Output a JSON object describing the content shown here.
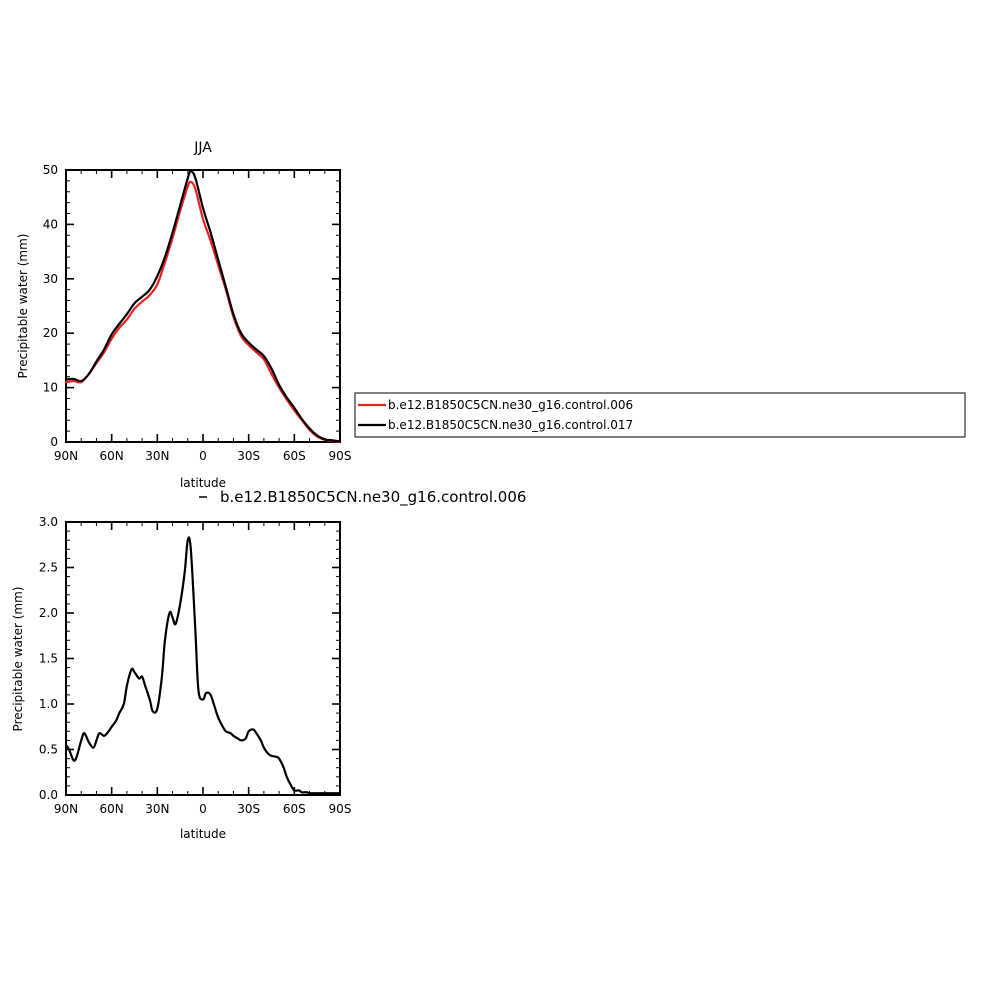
{
  "colors": {
    "series_a": "#e8201f",
    "series_b": "#000000",
    "diff": "#000000"
  },
  "chart_data": [
    {
      "type": "line",
      "title": "JJA",
      "xlabel": "latitude",
      "ylabel": "Precipitable water (mm)",
      "x_ticks": [
        "90N",
        "60N",
        "30N",
        "0",
        "30S",
        "60S",
        "90S"
      ],
      "x_tick_values": [
        90,
        60,
        30,
        0,
        -30,
        -60,
        -90
      ],
      "y_ticks": [
        "0",
        "10",
        "20",
        "30",
        "40",
        "50"
      ],
      "y_tick_values": [
        0,
        10,
        20,
        30,
        40,
        50
      ],
      "xlim": [
        90,
        -90
      ],
      "ylim": [
        0,
        50
      ],
      "legend": "right",
      "x": [
        90,
        85,
        80,
        75,
        70,
        65,
        60,
        55,
        50,
        45,
        40,
        35,
        30,
        25,
        20,
        15,
        10,
        8,
        5,
        0,
        -5,
        -10,
        -15,
        -20,
        -25,
        -30,
        -35,
        -40,
        -45,
        -50,
        -55,
        -60,
        -65,
        -70,
        -75,
        -80,
        -85,
        -90
      ],
      "series": [
        {
          "name": "b.e12.B1850C5CN.ne30_g16.control.006",
          "color": "#e8201f",
          "values": [
            11.0,
            11.2,
            11.0,
            12.5,
            14.5,
            16.5,
            19.0,
            21.0,
            22.5,
            24.5,
            25.8,
            27.0,
            29.0,
            33.0,
            37.5,
            42.5,
            47.0,
            47.8,
            46.5,
            41.0,
            37.0,
            32.5,
            28.0,
            23.0,
            19.5,
            17.8,
            16.5,
            15.2,
            12.5,
            10.0,
            7.8,
            5.8,
            4.0,
            2.2,
            1.0,
            0.4,
            0.2,
            0.0
          ]
        },
        {
          "name": "b.e12.B1850C5CN.ne30_g16.control.017",
          "color": "#000000",
          "values": [
            11.5,
            11.6,
            11.2,
            12.5,
            14.8,
            17.0,
            19.8,
            21.7,
            23.5,
            25.5,
            26.7,
            28.0,
            30.5,
            34.0,
            38.5,
            43.5,
            48.5,
            49.8,
            48.5,
            43.0,
            38.5,
            33.5,
            28.5,
            23.5,
            20.0,
            18.3,
            17.0,
            15.8,
            13.5,
            10.5,
            8.2,
            6.3,
            4.2,
            2.5,
            1.2,
            0.5,
            0.3,
            0.1
          ]
        }
      ]
    },
    {
      "type": "line",
      "title": "b.e12.B1850C5CN.ne30_g16.control.006",
      "xlabel": "latitude",
      "ylabel": "Precipitable water (mm)",
      "x_ticks": [
        "90N",
        "60N",
        "30N",
        "0",
        "30S",
        "60S",
        "90S"
      ],
      "x_tick_values": [
        90,
        60,
        30,
        0,
        -30,
        -60,
        -90
      ],
      "y_ticks": [
        "0.0",
        "0.5",
        "1.0",
        "1.5",
        "2.0",
        "2.5",
        "3.0"
      ],
      "y_tick_values": [
        0,
        0.5,
        1.0,
        1.5,
        2.0,
        2.5,
        3.0
      ],
      "xlim": [
        90,
        -90
      ],
      "ylim": [
        0,
        3.0
      ],
      "x": [
        90,
        88,
        85,
        83,
        80,
        78,
        75,
        72,
        70,
        68,
        65,
        62,
        60,
        57,
        55,
        52,
        50,
        47,
        45,
        42,
        40,
        38,
        35,
        33,
        30,
        27,
        25,
        22,
        20,
        18,
        15,
        12,
        10,
        8,
        5,
        3,
        0,
        -2,
        -5,
        -8,
        -10,
        -13,
        -15,
        -18,
        -20,
        -23,
        -25,
        -28,
        -30,
        -33,
        -35,
        -38,
        -40,
        -43,
        -45,
        -48,
        -50,
        -53,
        -55,
        -58,
        -60,
        -63,
        -65,
        -68,
        -70,
        -73,
        -75,
        -78,
        -80,
        -83,
        -85,
        -88,
        -90
      ],
      "series": [
        {
          "name": "",
          "color": "#000000",
          "values": [
            0.55,
            0.5,
            0.38,
            0.42,
            0.6,
            0.68,
            0.58,
            0.52,
            0.6,
            0.68,
            0.65,
            0.7,
            0.75,
            0.82,
            0.9,
            1.0,
            1.2,
            1.38,
            1.35,
            1.28,
            1.3,
            1.2,
            1.05,
            0.92,
            0.95,
            1.3,
            1.7,
            2.0,
            1.95,
            1.88,
            2.1,
            2.45,
            2.8,
            2.7,
            1.8,
            1.15,
            1.05,
            1.12,
            1.1,
            0.95,
            0.85,
            0.75,
            0.7,
            0.68,
            0.65,
            0.62,
            0.6,
            0.62,
            0.7,
            0.72,
            0.68,
            0.6,
            0.52,
            0.45,
            0.43,
            0.42,
            0.4,
            0.3,
            0.2,
            0.1,
            0.05,
            0.05,
            0.03,
            0.03,
            0.02,
            0.02,
            0.02,
            0.02,
            0.02,
            0.02,
            0.02,
            0.02,
            0.02
          ]
        }
      ]
    }
  ]
}
